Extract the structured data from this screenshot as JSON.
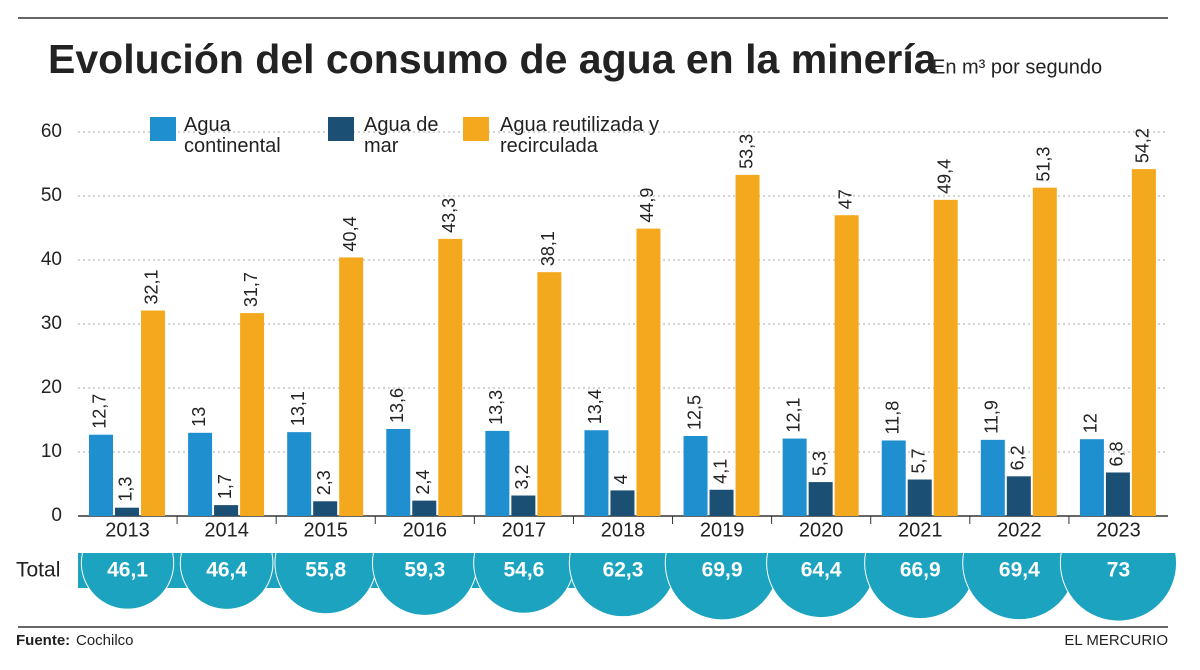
{
  "chart_data": {
    "type": "bar",
    "title": "Evolución del consumo de agua en la minería",
    "subtitle": "En m³ por segundo",
    "categories": [
      "2013",
      "2014",
      "2015",
      "2016",
      "2017",
      "2018",
      "2019",
      "2020",
      "2021",
      "2022",
      "2023"
    ],
    "series": [
      {
        "name": "Agua continental",
        "color": "#1f8fd0",
        "values": [
          12.7,
          13,
          13.1,
          13.6,
          13.3,
          13.4,
          12.5,
          12.1,
          11.8,
          11.9,
          12
        ],
        "value_labels": [
          "12,7",
          "13",
          "13,1",
          "13,6",
          "13,3",
          "13,4",
          "12,5",
          "12,1",
          "11,8",
          "11,9",
          "12"
        ]
      },
      {
        "name": "Agua de mar",
        "color": "#1c4f74",
        "values": [
          1.3,
          1.7,
          2.3,
          2.4,
          3.2,
          4,
          4.1,
          5.3,
          5.7,
          6.2,
          6.8
        ],
        "value_labels": [
          "1,3",
          "1,7",
          "2,3",
          "2,4",
          "3,2",
          "4",
          "4,1",
          "5,3",
          "5,7",
          "6,2",
          "6,8"
        ]
      },
      {
        "name": "Agua reutilizada y recirculada",
        "color": "#f4a81d",
        "values": [
          32.1,
          31.7,
          40.4,
          43.3,
          38.1,
          44.9,
          53.3,
          47,
          49.4,
          51.3,
          54.2
        ],
        "value_labels": [
          "32,1",
          "31,7",
          "40,4",
          "43,3",
          "38,1",
          "44,9",
          "53,3",
          "47",
          "49,4",
          "51,3",
          "54,2"
        ]
      }
    ],
    "total_label": "Total",
    "totals": [
      46.1,
      46.4,
      55.8,
      59.3,
      54.6,
      62.3,
      69.9,
      64.4,
      66.9,
      69.4,
      73
    ],
    "total_labels": [
      "46,1",
      "46,4",
      "55,8",
      "59,3",
      "54,6",
      "62,3",
      "69,9",
      "64,4",
      "66,9",
      "69,4",
      "73"
    ],
    "totals_color": "#1ba3bf",
    "ylim": [
      0,
      60
    ],
    "yticks": [
      0,
      10,
      20,
      30,
      40,
      50,
      60
    ],
    "grid": true,
    "source_label": "Fuente:",
    "source": "Cochilco",
    "publisher": "EL MERCURIO"
  }
}
